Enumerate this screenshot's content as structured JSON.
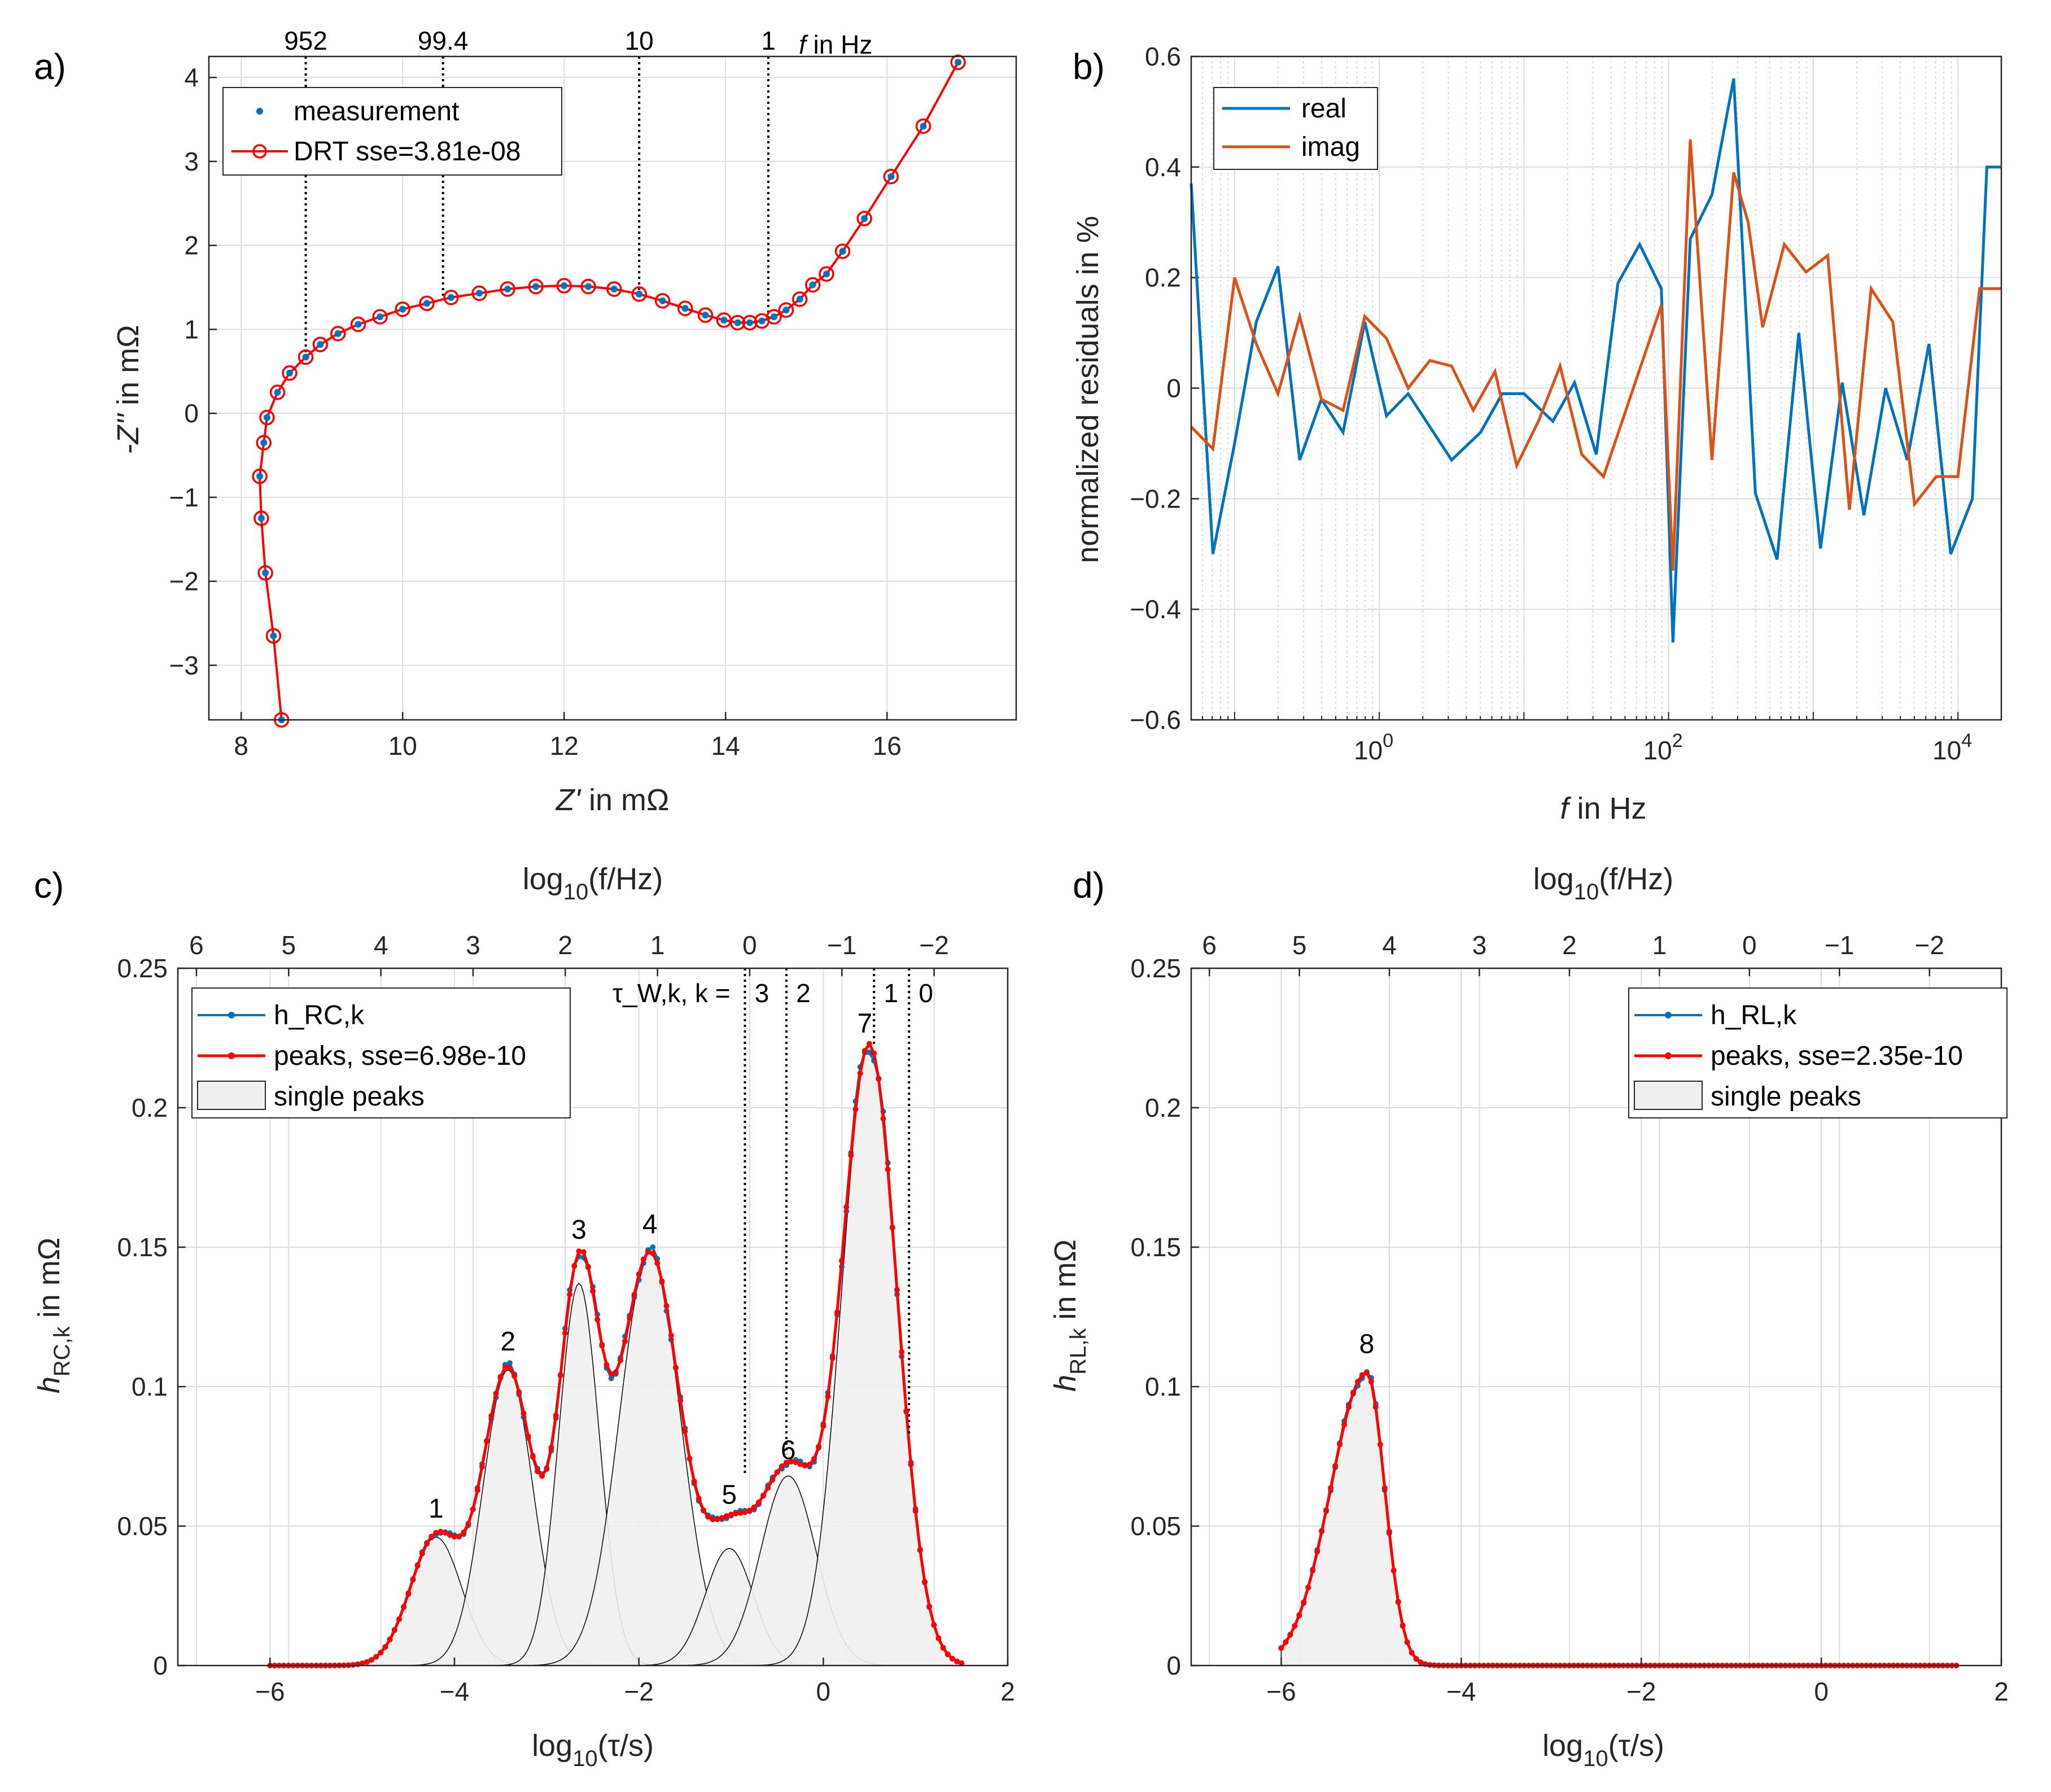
{
  "colors": {
    "blue": "#0072BD",
    "orange": "#D95319",
    "red": "#FF0000",
    "peak_fill": "#EFEFEF",
    "axis": "#262626"
  },
  "chart_data": [
    {
      "panel": "a)",
      "type": "line",
      "xlabel_italic": "Z'",
      "xlabel_rest": " in mΩ",
      "ylabel_italic": "-Z''",
      "ylabel_rest": " in mΩ",
      "xlim": [
        7.6,
        17.6
      ],
      "ylim": [
        -3.65,
        4.25
      ],
      "xticks": [
        8,
        10,
        12,
        14,
        16
      ],
      "yticks": [
        -3,
        -2,
        -1,
        0,
        1,
        2,
        3,
        4
      ],
      "grid": true,
      "legend": [
        "measurement",
        "DRT sse=3.81e-08"
      ],
      "legend_position": "top-left",
      "freq_markers": [
        {
          "label": "952",
          "x": 8.8,
          "y_end": 0.7
        },
        {
          "label": "99.4",
          "x": 10.5,
          "y_end": 1.4
        },
        {
          "label": "10",
          "x": 12.93,
          "y_end": 1.42
        },
        {
          "label": "1",
          "x": 14.53,
          "y_end": 1.1
        }
      ],
      "freq_unit_italic": "f",
      "freq_unit_rest": " in Hz",
      "series": [
        {
          "name": "measurement",
          "x": [
            8.5,
            8.4,
            8.3,
            8.25,
            8.23,
            8.28,
            8.32,
            8.45,
            8.6,
            8.8,
            8.98,
            9.2,
            9.45,
            9.72,
            10.0,
            10.3,
            10.6,
            10.95,
            11.3,
            11.65,
            12.0,
            12.3,
            12.62,
            12.93,
            13.22,
            13.5,
            13.75,
            13.98,
            14.15,
            14.3,
            14.45,
            14.6,
            14.75,
            14.92,
            15.08,
            15.25,
            15.45,
            15.72,
            16.05,
            16.45,
            16.88
          ],
          "y": [
            -3.65,
            -2.65,
            -1.9,
            -1.25,
            -0.75,
            -0.35,
            -0.05,
            0.25,
            0.48,
            0.67,
            0.82,
            0.95,
            1.06,
            1.15,
            1.24,
            1.31,
            1.38,
            1.43,
            1.48,
            1.51,
            1.52,
            1.51,
            1.48,
            1.42,
            1.34,
            1.25,
            1.17,
            1.11,
            1.08,
            1.08,
            1.1,
            1.15,
            1.23,
            1.36,
            1.53,
            1.66,
            1.93,
            2.32,
            2.82,
            3.42,
            4.18
          ]
        },
        {
          "name": "DRT sse=3.81e-08",
          "x": [
            8.5,
            8.4,
            8.3,
            8.25,
            8.23,
            8.28,
            8.32,
            8.45,
            8.6,
            8.8,
            8.98,
            9.2,
            9.45,
            9.72,
            10.0,
            10.3,
            10.6,
            10.95,
            11.3,
            11.65,
            12.0,
            12.3,
            12.62,
            12.93,
            13.22,
            13.5,
            13.75,
            13.98,
            14.15,
            14.3,
            14.45,
            14.6,
            14.75,
            14.92,
            15.08,
            15.25,
            15.45,
            15.72,
            16.05,
            16.45,
            16.88
          ],
          "y": [
            -3.65,
            -2.65,
            -1.9,
            -1.25,
            -0.75,
            -0.35,
            -0.05,
            0.25,
            0.48,
            0.67,
            0.82,
            0.95,
            1.06,
            1.15,
            1.24,
            1.31,
            1.38,
            1.43,
            1.48,
            1.51,
            1.52,
            1.51,
            1.48,
            1.42,
            1.34,
            1.25,
            1.17,
            1.11,
            1.08,
            1.08,
            1.1,
            1.15,
            1.23,
            1.36,
            1.53,
            1.66,
            1.93,
            2.32,
            2.82,
            3.42,
            4.18
          ]
        }
      ]
    },
    {
      "panel": "b)",
      "type": "line",
      "xscale": "log",
      "xlabel_italic": "f",
      "xlabel_rest": " in Hz",
      "ylabel": "normalized residuals in %",
      "xlim_log10": [
        -1.3,
        4.3
      ],
      "ylim": [
        -0.6,
        0.6
      ],
      "xticks": [
        {
          "base": "10",
          "exp": "0",
          "log10": 0
        },
        {
          "base": "10",
          "exp": "2",
          "log10": 2
        },
        {
          "base": "10",
          "exp": "4",
          "log10": 4
        }
      ],
      "yticks": [
        -0.6,
        -0.4,
        -0.2,
        0,
        0.2,
        0.4,
        0.6
      ],
      "legend": [
        "real",
        "imag"
      ],
      "legend_position": "top-left",
      "series": [
        {
          "name": "real",
          "log10_f": [
            -1.3,
            -1.15,
            -1.0,
            -0.85,
            -0.7,
            -0.55,
            -0.4,
            -0.25,
            -0.1,
            0.05,
            0.2,
            0.5,
            0.7,
            0.85,
            1.0,
            1.2,
            1.35,
            1.5,
            1.65,
            1.8,
            1.95,
            2.03,
            2.15,
            2.3,
            2.45,
            2.6,
            2.75,
            2.9,
            3.05,
            3.2,
            3.35,
            3.5,
            3.65,
            3.8,
            3.95,
            4.1,
            4.2,
            4.3
          ],
          "values": [
            0.37,
            -0.3,
            -0.1,
            0.12,
            0.22,
            -0.13,
            -0.02,
            -0.08,
            0.12,
            -0.05,
            -0.01,
            -0.13,
            -0.08,
            -0.01,
            -0.01,
            -0.06,
            0.01,
            -0.12,
            0.19,
            0.26,
            0.18,
            -0.46,
            0.27,
            0.35,
            0.56,
            -0.19,
            -0.31,
            0.1,
            -0.29,
            0.01,
            -0.23,
            0.0,
            -0.13,
            0.08,
            -0.3,
            -0.2,
            0.4,
            0.4
          ]
        },
        {
          "name": "imag",
          "log10_f": [
            -1.3,
            -1.15,
            -1.0,
            -0.85,
            -0.7,
            -0.55,
            -0.4,
            -0.25,
            -0.1,
            0.05,
            0.2,
            0.35,
            0.5,
            0.65,
            0.8,
            0.95,
            1.1,
            1.25,
            1.4,
            1.55,
            1.95,
            2.03,
            2.15,
            2.3,
            2.45,
            2.55,
            2.65,
            2.8,
            2.95,
            3.1,
            3.25,
            3.4,
            3.55,
            3.7,
            3.85,
            4.0,
            4.15,
            4.3
          ],
          "values": [
            -0.07,
            -0.11,
            0.2,
            0.08,
            -0.01,
            0.13,
            -0.02,
            -0.04,
            0.13,
            0.09,
            0.0,
            0.05,
            0.04,
            -0.04,
            0.03,
            -0.14,
            -0.06,
            0.04,
            -0.12,
            -0.16,
            0.15,
            -0.33,
            0.45,
            -0.13,
            0.39,
            0.3,
            0.11,
            0.26,
            0.21,
            0.24,
            -0.22,
            0.18,
            0.12,
            -0.21,
            -0.16,
            -0.16,
            0.18,
            0.18
          ]
        }
      ]
    },
    {
      "panel": "c)",
      "type": "area",
      "xlabel": "log₁₀(τ/s)",
      "xlabel_pre": "log",
      "xlabel_sub": "10",
      "xlabel_post": "(τ/s)",
      "ylabel_main": "h",
      "ylabel_sub": "RC,k",
      "ylabel_rest": " in mΩ",
      "top_label_pre": "log",
      "top_label_sub": "10",
      "top_label_post": "(f/Hz)",
      "xlim": [
        -7,
        2
      ],
      "ylim": [
        0,
        0.25
      ],
      "xticks": [
        -6,
        -4,
        -2,
        0,
        2
      ],
      "top_ticks": [
        6,
        5,
        4,
        3,
        2,
        1,
        0,
        -1,
        -2
      ],
      "yticks": [
        0,
        0.05,
        0.1,
        0.15,
        0.2,
        0.25
      ],
      "legend": [
        "h_RC,k",
        "peaks, sse=6.98e-10",
        "single peaks"
      ],
      "legend_position": "top-left",
      "tau_w_label": "τ_W,k, k =",
      "tau_w_markers": [
        {
          "k": "3",
          "x": -0.85
        },
        {
          "k": "2",
          "x": -0.4
        },
        {
          "k": "1",
          "x": 0.55
        },
        {
          "k": "0",
          "x": 0.93
        }
      ],
      "single_peaks": [
        {
          "label": "1",
          "center": -4.2,
          "height": 0.046,
          "sigma": 0.28
        },
        {
          "label": "2",
          "center": -3.42,
          "height": 0.106,
          "sigma": 0.27
        },
        {
          "label": "3",
          "center": -2.65,
          "height": 0.137,
          "sigma": 0.22
        },
        {
          "label": "4",
          "center": -1.88,
          "height": 0.148,
          "sigma": 0.33
        },
        {
          "label": "5",
          "center": -1.02,
          "height": 0.042,
          "sigma": 0.26
        },
        {
          "label": "6",
          "center": -0.38,
          "height": 0.068,
          "sigma": 0.3
        },
        {
          "label": "7",
          "center": 0.5,
          "height": 0.222,
          "sigma": 0.3
        }
      ],
      "peak_labels": [
        {
          "text": "1",
          "x": -4.2,
          "y": 0.053
        },
        {
          "text": "2",
          "x": -3.42,
          "y": 0.113
        },
        {
          "text": "3",
          "x": -2.65,
          "y": 0.153
        },
        {
          "text": "4",
          "x": -1.88,
          "y": 0.155
        },
        {
          "text": "5",
          "x": -1.02,
          "y": 0.058
        },
        {
          "text": "6",
          "x": -0.38,
          "y": 0.074
        },
        {
          "text": "7",
          "x": 0.45,
          "y": 0.227
        }
      ]
    },
    {
      "panel": "d)",
      "type": "area",
      "xlabel_pre": "log",
      "xlabel_sub": "10",
      "xlabel_post": "(τ/s)",
      "ylabel_main": "h",
      "ylabel_sub": "RL,k",
      "ylabel_rest": " in mΩ",
      "top_label_pre": "log",
      "top_label_sub": "10",
      "top_label_post": "(f/Hz)",
      "xlim": [
        -7,
        2
      ],
      "ylim": [
        0,
        0.25
      ],
      "xticks": [
        -6,
        -4,
        -2,
        0,
        2
      ],
      "top_ticks": [
        6,
        5,
        4,
        3,
        2,
        1,
        0,
        -1,
        -2
      ],
      "yticks": [
        0,
        0.05,
        0.1,
        0.15,
        0.2,
        0.25
      ],
      "legend": [
        "h_RL,k",
        "peaks, sse=2.35e-10",
        "single peaks"
      ],
      "legend_position": "top-right",
      "single_peaks": [
        {
          "label": "8",
          "center": -5.05,
          "height": 0.105,
          "sigma_left": 0.4,
          "sigma_right": 0.2
        }
      ],
      "peak_labels": [
        {
          "text": "8",
          "x": -5.05,
          "y": 0.112
        }
      ]
    }
  ]
}
